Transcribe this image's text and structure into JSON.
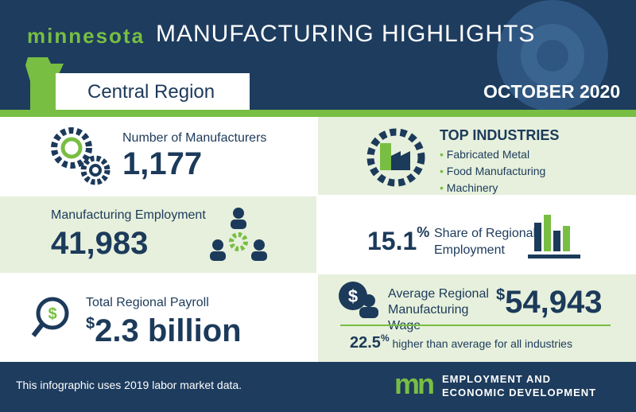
{
  "header": {
    "brand": "minnesota",
    "title": "MANUFACTURING HIGHLIGHTS",
    "region": "Central Region",
    "date": "OCTOBER 2020"
  },
  "manufacturers": {
    "label": "Number of Manufacturers",
    "value": "1,177"
  },
  "top_industries": {
    "title": "TOP INDUSTRIES",
    "items": [
      "Fabricated Metal",
      "Food Manufacturing",
      "Machinery"
    ]
  },
  "employment": {
    "label": "Manufacturing Employment",
    "value": "41,983"
  },
  "share": {
    "value": "15.1",
    "unit": "%",
    "label": "Share of Regional Employment"
  },
  "payroll": {
    "label": "Total Regional Payroll",
    "currency": "$",
    "value": "2.3 billion"
  },
  "wage": {
    "label": "Average Regional Manufacturing Wage",
    "currency": "$",
    "value": "54,943",
    "comparison_value": "22.5",
    "comparison_unit": "%",
    "comparison_text": "higher than average for all industries"
  },
  "footer": {
    "note": "This infographic uses 2019 labor market data.",
    "logo": "mn",
    "org": "EMPLOYMENT AND ECONOMIC DEVELOPMENT"
  }
}
